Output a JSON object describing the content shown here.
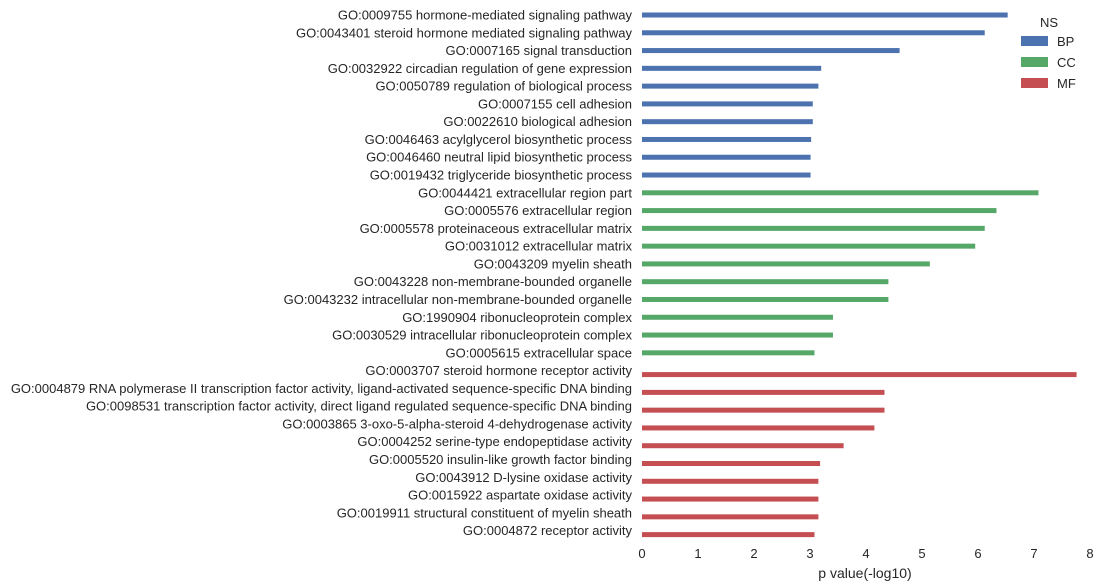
{
  "chart_data": {
    "type": "bar",
    "orientation": "horizontal",
    "xlabel": "p value(-log10)",
    "ylabel": "",
    "xlim": [
      0,
      8
    ],
    "xticks": [
      "0",
      "1",
      "2",
      "3",
      "4",
      "5",
      "6",
      "7",
      "8"
    ],
    "grid": false,
    "legend": {
      "title": "NS",
      "placement": "top-right",
      "entries": [
        {
          "name": "BP",
          "color": "#4c72b0"
        },
        {
          "name": "CC",
          "color": "#55a868"
        },
        {
          "name": "MF",
          "color": "#c44e52"
        }
      ]
    },
    "categories": [
      "GO:0009755 hormone-mediated signaling pathway",
      "GO:0043401 steroid hormone mediated signaling pathway",
      "GO:0007165 signal transduction",
      "GO:0032922 circadian regulation of gene expression",
      "GO:0050789 regulation of biological process",
      "GO:0007155 cell adhesion",
      "GO:0022610 biological adhesion",
      "GO:0046463 acylglycerol biosynthetic process",
      "GO:0046460 neutral lipid biosynthetic process",
      "GO:0019432 triglyceride biosynthetic process",
      "GO:0044421 extracellular region part",
      "GO:0005576 extracellular region",
      "GO:0005578 proteinaceous extracellular matrix",
      "GO:0031012 extracellular matrix",
      "GO:0043209 myelin sheath",
      "GO:0043228 non-membrane-bounded organelle",
      "GO:0043232 intracellular non-membrane-bounded organelle",
      "GO:1990904 ribonucleoprotein complex",
      "GO:0030529 intracellular ribonucleoprotein complex",
      "GO:0005615 extracellular space",
      "GO:0003707 steroid hormone receptor activity",
      "GO:0004879 RNA polymerase II transcription factor activity, ligand-activated sequence-specific DNA binding",
      "GO:0098531 transcription factor activity, direct ligand regulated sequence-specific DNA binding",
      "GO:0003865 3-oxo-5-alpha-steroid 4-dehydrogenase activity",
      "GO:0004252 serine-type endopeptidase activity",
      "GO:0005520 insulin-like growth factor binding",
      "GO:0043912 D-lysine oxidase activity",
      "GO:0015922 aspartate oxidase activity",
      "GO:0019911 structural constituent of myelin sheath",
      "GO:0004872 receptor activity"
    ],
    "series": [
      {
        "name": "BP",
        "color": "#4c72b0",
        "values": [
          6.53,
          6.12,
          4.6,
          3.2,
          3.15,
          3.05,
          3.05,
          3.02,
          3.01,
          3.01,
          null,
          null,
          null,
          null,
          null,
          null,
          null,
          null,
          null,
          null,
          null,
          null,
          null,
          null,
          null,
          null,
          null,
          null,
          null,
          null
        ]
      },
      {
        "name": "CC",
        "color": "#55a868",
        "values": [
          null,
          null,
          null,
          null,
          null,
          null,
          null,
          null,
          null,
          null,
          7.08,
          6.33,
          6.12,
          5.95,
          5.14,
          4.4,
          4.4,
          3.41,
          3.41,
          3.08,
          null,
          null,
          null,
          null,
          null,
          null,
          null,
          null,
          null,
          null
        ]
      },
      {
        "name": "MF",
        "color": "#c44e52",
        "values": [
          null,
          null,
          null,
          null,
          null,
          null,
          null,
          null,
          null,
          null,
          null,
          null,
          null,
          null,
          null,
          null,
          null,
          null,
          null,
          null,
          7.76,
          4.33,
          4.33,
          4.15,
          3.6,
          3.18,
          3.15,
          3.15,
          3.15,
          3.08
        ]
      }
    ]
  }
}
